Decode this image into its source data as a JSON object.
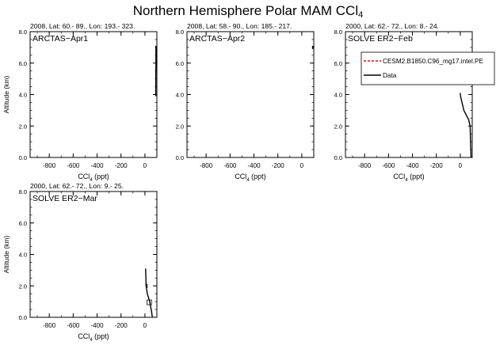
{
  "figure": {
    "title_main": "Northern Hemisphere Polar MAM CCl",
    "title_sub": "4"
  },
  "chart_data": [
    {
      "type": "line",
      "header": "2008, Lat:  60.- 89., Lon: 193.- 323.",
      "campaign_label": "ARCTAS−Apr1",
      "xlabel": "CCl",
      "xlabel_sub": "4",
      "xlabel_units": " (ppt)",
      "ylabel": "Altitude (km)",
      "xlim": [
        -960,
        100
      ],
      "ylim": [
        0,
        8
      ],
      "x_ticks": [
        -800,
        -600,
        -400,
        -200,
        0
      ],
      "x_tick_labels": [
        "-800",
        "-600",
        "-400",
        "-200",
        "0"
      ],
      "y_ticks": [
        0,
        2,
        4,
        6,
        8
      ],
      "y_tick_labels": [
        "0.0",
        "2.0",
        "4.0",
        "6.0",
        "8.0"
      ],
      "series": [
        {
          "name": "Data",
          "color": "#000000",
          "x": [
            92,
            92,
            91,
            91
          ],
          "y": [
            7.1,
            6.0,
            5.0,
            3.9
          ],
          "boxes": []
        },
        {
          "name": "CESM2.B1850.C96_mg17.intel.PE",
          "color": "#ff0000",
          "dash": true,
          "x": [],
          "y": []
        }
      ]
    },
    {
      "type": "line",
      "header": "2008, Lat:  58.- 90., Lon: 185.- 217.",
      "campaign_label": "ARCTAS−Apr2",
      "xlabel": "CCl",
      "xlabel_sub": "4",
      "xlabel_units": " (ppt)",
      "ylabel": "",
      "xlim": [
        -960,
        100
      ],
      "ylim": [
        0,
        8
      ],
      "x_ticks": [
        -800,
        -600,
        -400,
        -200,
        0
      ],
      "x_tick_labels": [
        "-800",
        "-600",
        "-400",
        "-200",
        "0"
      ],
      "y_ticks": [
        0,
        2,
        4,
        6,
        8
      ],
      "y_tick_labels": [
        "0.0",
        "2.0",
        "4.0",
        "6.0",
        "8.0"
      ],
      "series": [
        {
          "name": "Data",
          "color": "#000000",
          "x": [
            92,
            91
          ],
          "y": [
            7.1,
            6.9
          ],
          "boxes": []
        },
        {
          "name": "CESM2.B1850.C96_mg17.intel.PE",
          "color": "#ff0000",
          "dash": true,
          "x": [],
          "y": []
        }
      ]
    },
    {
      "type": "line",
      "header": "2000, Lat:  62.- 72., Lon: 8.- 24.",
      "campaign_label": "SOLVE ER2−Feb",
      "xlabel": "CCl",
      "xlabel_sub": "4",
      "xlabel_units": " (ppt)",
      "ylabel": "",
      "xlim": [
        -960,
        100
      ],
      "ylim": [
        0,
        8
      ],
      "x_ticks": [
        -800,
        -600,
        -400,
        -200,
        0
      ],
      "x_tick_labels": [
        "-800",
        "-600",
        "-400",
        "-200",
        "0"
      ],
      "y_ticks": [
        0,
        2,
        4,
        6,
        8
      ],
      "y_tick_labels": [
        "0.0",
        "2.0",
        "4.0",
        "6.0",
        "8.0"
      ],
      "legend": {
        "placement": "top-right",
        "entries": [
          {
            "label": "CESM2.B1850.C96_mg17.intel.PE",
            "color": "#ff0000",
            "dash": true
          },
          {
            "label": "Data",
            "color": "#000000",
            "dash": false
          }
        ]
      },
      "series": [
        {
          "name": "Data",
          "color": "#000000",
          "x": [
            0,
            2,
            30,
            70,
            82,
            86,
            90
          ],
          "y": [
            4.1,
            3.9,
            3.0,
            2.4,
            2.0,
            1.0,
            0.0
          ],
          "boxes": []
        },
        {
          "name": "CESM2.B1850.C96_mg17.intel.PE",
          "color": "#ff0000",
          "dash": true,
          "x": [],
          "y": []
        }
      ]
    },
    {
      "type": "line",
      "header": "2000, Lat:  62.- 72., Lon: 9.- 25.",
      "campaign_label": "SOLVE ER2−Mar",
      "xlabel": "CCl",
      "xlabel_sub": "4",
      "xlabel_units": " (ppt)",
      "ylabel": "Altitude (km)",
      "xlim": [
        -960,
        100
      ],
      "ylim": [
        0,
        8
      ],
      "x_ticks": [
        -800,
        -600,
        -400,
        -200,
        0
      ],
      "x_tick_labels": [
        "-800",
        "-600",
        "-400",
        "-200",
        "0"
      ],
      "y_ticks": [
        0,
        2,
        4,
        6,
        8
      ],
      "y_tick_labels": [
        "0.0",
        "2.0",
        "4.0",
        "6.0",
        "8.0"
      ],
      "series": [
        {
          "name": "Data",
          "color": "#000000",
          "x": [
            5,
            8,
            10,
            20,
            40,
            55,
            62
          ],
          "y": [
            3.1,
            2.6,
            2.0,
            1.5,
            1.0,
            0.4,
            0.0
          ],
          "boxes": [
            {
              "x": [
                10,
                20
              ],
              "y": [
                1.9,
                2.1
              ]
            },
            {
              "x": [
                18,
                55
              ],
              "y": [
                0.8,
                1.1
              ]
            }
          ]
        },
        {
          "name": "CESM2.B1850.C96_mg17.intel.PE",
          "color": "#ff0000",
          "dash": true,
          "x": [],
          "y": []
        }
      ]
    }
  ]
}
